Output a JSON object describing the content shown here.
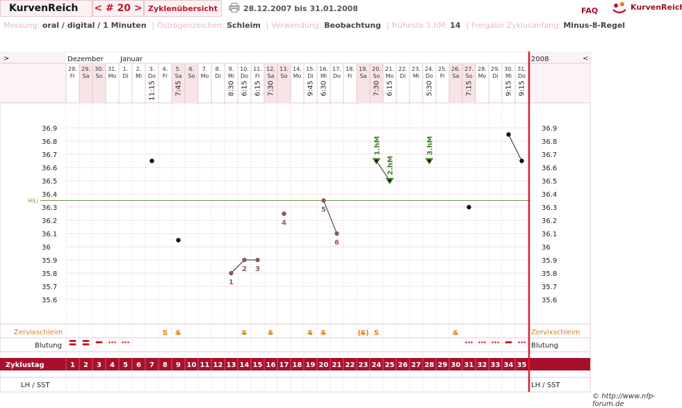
{
  "app": {
    "brand": "KurvenReich",
    "cycle_nav": "< # 20 >",
    "overview_label": "Zyklenübersicht",
    "period": "28.12.2007 bis 31.01.2008",
    "faq": "FAQ",
    "logo_text": "KurvenReich",
    "credit": "© http://www.nfp-forum.de"
  },
  "info": [
    {
      "label": "Messung:",
      "value": "oral / digital / 1 Minuten"
    },
    {
      "label": "Östrogenzeichen:",
      "value": "Schleim"
    },
    {
      "label": "Verwendung:",
      "value": "Beobachtung"
    },
    {
      "label": "früheste 1.hM:",
      "value": "14"
    },
    {
      "label": "Freigabe Zyklusanfang:",
      "value": "Minus-8-Regel"
    }
  ],
  "chart": {
    "nav_left": ">",
    "nav_right": "<",
    "year": "2008",
    "months": [
      {
        "label": "Dezember",
        "col": 0
      },
      {
        "label": "Januar",
        "col": 4
      }
    ],
    "y_ticks": [
      "36.9",
      "36.8",
      "36.7",
      "36.6",
      "36.5",
      "36.4",
      "36.3",
      "36.2",
      "36.1",
      "36",
      "35.9",
      "35.8",
      "35.7",
      "35.6"
    ],
    "hili_label": "HiLi",
    "hili_value": 36.35,
    "row_labels": {
      "zervix": "Zervixschleim",
      "blutung": "Blutung",
      "zyklustag": "Zyklustag",
      "lh": "LH / SST"
    },
    "days": [
      {
        "d": "28.",
        "w": "Fr",
        "t": "",
        "we": false
      },
      {
        "d": "29.",
        "w": "Sa",
        "t": "",
        "we": true
      },
      {
        "d": "30.",
        "w": "So",
        "t": "",
        "we": true
      },
      {
        "d": "31.",
        "w": "Mo",
        "t": "",
        "we": false
      },
      {
        "d": "1.",
        "w": "Di",
        "t": "",
        "we": false
      },
      {
        "d": "2.",
        "w": "Mi",
        "t": "",
        "we": false
      },
      {
        "d": "3.",
        "w": "Do",
        "t": "11:15",
        "we": false
      },
      {
        "d": "4.",
        "w": "Fr",
        "t": "",
        "we": false
      },
      {
        "d": "5.",
        "w": "Sa",
        "t": "7:45",
        "we": true
      },
      {
        "d": "6.",
        "w": "So",
        "t": "",
        "we": true
      },
      {
        "d": "7.",
        "w": "Mo",
        "t": "",
        "we": false
      },
      {
        "d": "8.",
        "w": "Di",
        "t": "",
        "we": false
      },
      {
        "d": "9.",
        "w": "Mi",
        "t": "8:30",
        "we": false
      },
      {
        "d": "10.",
        "w": "Do",
        "t": "6:15",
        "we": false
      },
      {
        "d": "11.",
        "w": "Fr",
        "t": "6:15",
        "we": false
      },
      {
        "d": "12.",
        "w": "Sa",
        "t": "7:30",
        "we": true
      },
      {
        "d": "13.",
        "w": "So",
        "t": "",
        "we": true
      },
      {
        "d": "14.",
        "w": "Mo",
        "t": "",
        "we": false
      },
      {
        "d": "15.",
        "w": "Di",
        "t": "9:45",
        "we": false
      },
      {
        "d": "16.",
        "w": "Mi",
        "t": "6:30",
        "we": false
      },
      {
        "d": "17.",
        "w": "Do",
        "t": "",
        "we": false
      },
      {
        "d": "18.",
        "w": "Fr",
        "t": "",
        "we": false
      },
      {
        "d": "19.",
        "w": "Sa",
        "t": "",
        "we": true
      },
      {
        "d": "20.",
        "w": "So",
        "t": "7:30",
        "we": true
      },
      {
        "d": "21.",
        "w": "Mo",
        "t": "6:15",
        "we": false
      },
      {
        "d": "22.",
        "w": "Di",
        "t": "",
        "we": false
      },
      {
        "d": "23.",
        "w": "Mi",
        "t": "",
        "we": false
      },
      {
        "d": "24.",
        "w": "Do",
        "t": "5:30",
        "we": false
      },
      {
        "d": "25.",
        "w": "Fr",
        "t": "",
        "we": false
      },
      {
        "d": "26.",
        "w": "Sa",
        "t": "",
        "we": true
      },
      {
        "d": "27.",
        "w": "So",
        "t": "7:15",
        "we": true
      },
      {
        "d": "28.",
        "w": "Mo",
        "t": "",
        "we": false
      },
      {
        "d": "29.",
        "w": "Di",
        "t": "",
        "we": false
      },
      {
        "d": "30.",
        "w": "Mi",
        "t": "9:15",
        "we": false
      },
      {
        "d": "31.",
        "w": "Do",
        "t": "9:15",
        "we": false
      }
    ],
    "cycle_days": [
      "1",
      "2",
      "3",
      "4",
      "5",
      "6",
      "7",
      "8",
      "9",
      "10",
      "11",
      "12",
      "13",
      "14",
      "15",
      "16",
      "17",
      "18",
      "19",
      "20",
      "21",
      "22",
      "23",
      "24",
      "25",
      "26",
      "27",
      "28",
      "29",
      "30",
      "31",
      "32",
      "33",
      "34",
      "35"
    ],
    "temps": [
      {
        "day": 7,
        "temp": 36.65,
        "kind": "normal"
      },
      {
        "day": 9,
        "temp": 36.05,
        "kind": "normal"
      },
      {
        "day": 13,
        "temp": 35.8,
        "kind": "counted",
        "label": "1"
      },
      {
        "day": 14,
        "temp": 35.9,
        "kind": "counted",
        "label": "2"
      },
      {
        "day": 15,
        "temp": 35.9,
        "kind": "counted",
        "label": "3"
      },
      {
        "day": 17,
        "temp": 36.25,
        "kind": "counted",
        "label": "4"
      },
      {
        "day": 20,
        "temp": 36.35,
        "kind": "counted",
        "label": "5",
        "label_pos": "below-left"
      },
      {
        "day": 21,
        "temp": 36.1,
        "kind": "counted",
        "label": "6"
      },
      {
        "day": 24,
        "temp": 36.65,
        "kind": "hm",
        "label": "1.hM"
      },
      {
        "day": 25,
        "temp": 36.5,
        "kind": "hm",
        "label": "2.hM"
      },
      {
        "day": 28,
        "temp": 36.65,
        "kind": "hm",
        "label": "3.hM"
      },
      {
        "day": 31,
        "temp": 36.3,
        "kind": "normal"
      },
      {
        "day": 34,
        "temp": 36.85,
        "kind": "normal"
      },
      {
        "day": 35,
        "temp": 36.65,
        "kind": "normal"
      }
    ],
    "lines": [
      [
        13,
        14
      ],
      [
        14,
        15
      ],
      [
        20,
        21
      ],
      [
        24,
        25
      ],
      [
        34,
        35
      ]
    ],
    "mucus": [
      {
        "day": 8,
        "sym": "S"
      },
      {
        "day": 9,
        "sym": "S̶"
      },
      {
        "day": 14,
        "sym": "S̶"
      },
      {
        "day": 16,
        "sym": "S̶"
      },
      {
        "day": 19,
        "sym": "S̶"
      },
      {
        "day": 20,
        "sym": "S̶"
      },
      {
        "day": 23,
        "sym": "(S̶)"
      },
      {
        "day": 24,
        "sym": "S"
      },
      {
        "day": 30,
        "sym": "S̶"
      }
    ],
    "bleeding": [
      {
        "day": 1,
        "type": "heavy"
      },
      {
        "day": 2,
        "type": "heavy"
      },
      {
        "day": 3,
        "type": "medium"
      },
      {
        "day": 4,
        "type": "light"
      },
      {
        "day": 5,
        "type": "light"
      },
      {
        "day": 31,
        "type": "light"
      },
      {
        "day": 32,
        "type": "light"
      },
      {
        "day": 33,
        "type": "light"
      },
      {
        "day": 34,
        "type": "medium"
      },
      {
        "day": 35,
        "type": "light"
      }
    ],
    "colors": {
      "grid": "#e5c9cd",
      "weekend": "#f6e4e7",
      "hili": "#6f9a3a",
      "counted": "#8b5a5a",
      "hm": "#3f7f2a",
      "zyklustag_bg": "#a80f2b",
      "today_line": "#d81e30",
      "mucus": "#e07a10",
      "bleeding": "#cc1c2c",
      "panel": "#fbf3f4"
    }
  }
}
